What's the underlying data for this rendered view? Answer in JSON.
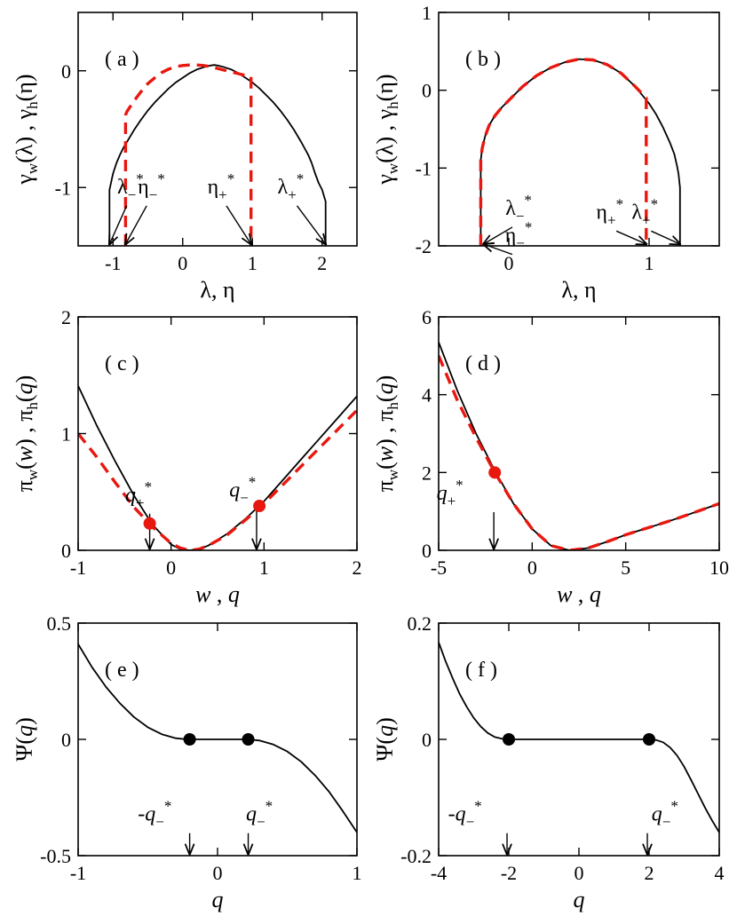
{
  "figure": {
    "title": ""
  },
  "chart_data": [
    {
      "id": "a",
      "type": "line",
      "panel_label": "( a )",
      "xlim": [
        -1.5,
        2.5
      ],
      "ylim": [
        -1.5,
        0.5
      ],
      "xticks": [
        -1,
        0,
        1,
        2
      ],
      "xtick_labels": [
        "-1",
        "0",
        "1",
        "2"
      ],
      "yticks": [
        -1,
        0
      ],
      "ytick_labels": [
        "-1",
        "0"
      ],
      "xlabel": "λ, η",
      "ylabel": "γw(λ) , γh(η)",
      "series": [
        {
          "name": "gamma_w",
          "style": "black-solid",
          "x": [
            -1.05,
            -1.05,
            -1.0,
            -0.95,
            -0.9,
            -0.85,
            -0.8,
            -0.7,
            -0.6,
            -0.5,
            -0.4,
            -0.3,
            -0.2,
            -0.1,
            0.0,
            0.1,
            0.2,
            0.3,
            0.4,
            0.45,
            0.5,
            0.6,
            0.7,
            0.8,
            0.9,
            1.0,
            1.1,
            1.2,
            1.3,
            1.4,
            1.5,
            1.6,
            1.7,
            1.8,
            1.85,
            1.9,
            1.95,
            2.0,
            2.05,
            2.05
          ],
          "y": [
            -1.5,
            -1.02,
            -0.88,
            -0.79,
            -0.72,
            -0.66,
            -0.61,
            -0.51,
            -0.42,
            -0.34,
            -0.27,
            -0.21,
            -0.15,
            -0.1,
            -0.06,
            -0.02,
            0.01,
            0.03,
            0.045,
            0.05,
            0.045,
            0.03,
            0.01,
            -0.02,
            -0.06,
            -0.1,
            -0.15,
            -0.21,
            -0.27,
            -0.34,
            -0.42,
            -0.51,
            -0.61,
            -0.72,
            -0.79,
            -0.88,
            -0.96,
            -1.02,
            -1.12,
            -1.5
          ]
        },
        {
          "name": "gamma_h",
          "style": "red-dashed",
          "x": [
            -0.82,
            -0.82,
            -0.8,
            -0.7,
            -0.6,
            -0.5,
            -0.4,
            -0.3,
            -0.2,
            -0.1,
            0.0,
            0.1,
            0.2,
            0.3,
            0.4,
            0.5,
            0.6,
            0.7,
            0.8,
            0.9,
            0.98,
            0.98
          ],
          "y": [
            -1.5,
            -0.38,
            -0.35,
            -0.26,
            -0.18,
            -0.11,
            -0.06,
            -0.015,
            0.015,
            0.035,
            0.045,
            0.05,
            0.05,
            0.045,
            0.035,
            0.02,
            0.005,
            -0.01,
            -0.025,
            -0.04,
            -0.05,
            -1.5
          ]
        }
      ],
      "annotations": [
        {
          "text": "λ",
          "sub": "−",
          "sup": "*",
          "tx": -0.75,
          "ty": -1.05,
          "ax": -1.05,
          "ay": -1.5
        },
        {
          "text": "η",
          "sub": "−",
          "sup": "*",
          "tx": -0.45,
          "ty": -1.05,
          "ax": -0.82,
          "ay": -1.5
        },
        {
          "text": "η",
          "sub": "+",
          "sup": "*",
          "tx": 0.55,
          "ty": -1.05,
          "ax": 0.98,
          "ay": -1.5
        },
        {
          "text": "λ",
          "sub": "+",
          "sup": "*",
          "tx": 1.55,
          "ty": -1.05,
          "ax": 2.05,
          "ay": -1.5
        }
      ],
      "markers": []
    },
    {
      "id": "b",
      "type": "line",
      "panel_label": "( b )",
      "xlim": [
        -0.5,
        1.5
      ],
      "ylim": [
        -2,
        1
      ],
      "xticks": [
        0,
        1
      ],
      "xtick_labels": [
        "0",
        "1"
      ],
      "yticks": [
        -2,
        -1,
        0,
        1
      ],
      "ytick_labels": [
        "-2",
        "-1",
        "0",
        "1"
      ],
      "xlabel": "λ, η",
      "ylabel": "γw(λ) , γh(η)",
      "series": [
        {
          "name": "gamma_w",
          "style": "black-solid",
          "x": [
            -0.2,
            -0.2,
            -0.19,
            -0.17,
            -0.14,
            -0.1,
            -0.05,
            0.0,
            0.1,
            0.2,
            0.3,
            0.4,
            0.5,
            0.6,
            0.7,
            0.8,
            0.9,
            1.0,
            1.05,
            1.1,
            1.15,
            1.18,
            1.2,
            1.21,
            1.22,
            1.22
          ],
          "y": [
            -2,
            -0.9,
            -0.75,
            -0.6,
            -0.45,
            -0.33,
            -0.22,
            -0.13,
            0.05,
            0.19,
            0.29,
            0.36,
            0.4,
            0.39,
            0.33,
            0.22,
            0.05,
            -0.17,
            -0.31,
            -0.48,
            -0.68,
            -0.82,
            -0.98,
            -1.08,
            -1.25,
            -2
          ]
        },
        {
          "name": "gamma_h",
          "style": "red-dashed",
          "x": [
            -0.2,
            -0.2,
            -0.19,
            -0.17,
            -0.14,
            -0.1,
            -0.05,
            0.0,
            0.1,
            0.2,
            0.3,
            0.4,
            0.5,
            0.6,
            0.7,
            0.8,
            0.9,
            0.98,
            0.98
          ],
          "y": [
            -2,
            -0.9,
            -0.75,
            -0.6,
            -0.45,
            -0.33,
            -0.22,
            -0.13,
            0.05,
            0.19,
            0.29,
            0.36,
            0.4,
            0.39,
            0.33,
            0.22,
            0.05,
            -0.1,
            -2
          ]
        }
      ],
      "annotations": [
        {
          "text": "λ",
          "sub": "−",
          "sup": "*",
          "tx": 0.07,
          "ty": -1.6,
          "ax": -0.18,
          "ay": -2
        },
        {
          "text": "η",
          "sub": "−",
          "sup": "*",
          "tx": 0.07,
          "ty": -1.95,
          "ax": -0.18,
          "ay": -2
        },
        {
          "text": "η",
          "sub": "+",
          "sup": "*",
          "tx": 0.72,
          "ty": -1.65,
          "ax": 0.98,
          "ay": -2
        },
        {
          "text": "λ",
          "sub": "+",
          "sup": "*",
          "tx": 0.97,
          "ty": -1.65,
          "ax": 1.22,
          "ay": -2
        }
      ],
      "markers": []
    },
    {
      "id": "c",
      "type": "line",
      "panel_label": "( c )",
      "xlim": [
        -1,
        2
      ],
      "ylim": [
        0,
        2
      ],
      "xticks": [
        -1,
        0,
        1,
        2
      ],
      "xtick_labels": [
        "-1",
        "0",
        "1",
        "2"
      ],
      "yticks": [
        0,
        1,
        2
      ],
      "ytick_labels": [
        "0",
        "1",
        "2"
      ],
      "xlabel": "w , q",
      "ylabel": "πw(w) , πh(q)",
      "series": [
        {
          "name": "pi_w",
          "style": "black-solid",
          "x": [
            -1.0,
            -0.8,
            -0.6,
            -0.4,
            -0.2,
            0.0,
            0.1,
            0.2,
            0.3,
            0.4,
            0.6,
            0.8,
            1.0,
            1.2,
            1.4,
            1.6,
            1.8,
            2.0
          ],
          "y": [
            1.41,
            1.07,
            0.76,
            0.47,
            0.22,
            0.05,
            0.01,
            0.0,
            0.01,
            0.04,
            0.14,
            0.27,
            0.42,
            0.6,
            0.78,
            0.96,
            1.14,
            1.32
          ]
        },
        {
          "name": "pi_h",
          "style": "red-dashed",
          "x": [
            -1.0,
            -0.8,
            -0.6,
            -0.4,
            -0.2,
            0.0,
            0.1,
            0.2,
            0.3,
            0.4,
            0.6,
            0.8,
            1.0,
            1.2,
            1.4,
            1.6,
            1.8,
            2.0
          ],
          "y": [
            1.0,
            0.8,
            0.58,
            0.37,
            0.2,
            0.06,
            0.02,
            0.0,
            0.01,
            0.04,
            0.13,
            0.26,
            0.4,
            0.56,
            0.72,
            0.88,
            1.04,
            1.2
          ]
        }
      ],
      "annotations": [
        {
          "text": "q",
          "sub": "+",
          "sup": "*",
          "tx": -0.35,
          "ty": 0.42,
          "ax": -0.23,
          "ay": 0.0,
          "vertical": true
        },
        {
          "text": "q",
          "sub": "−",
          "sup": "*",
          "tx": 0.77,
          "ty": 0.46,
          "ax": 0.92,
          "ay": 0.0,
          "vertical": true
        }
      ],
      "markers": [
        {
          "x": -0.23,
          "y": 0.23,
          "color": "#e8170f"
        },
        {
          "x": 0.95,
          "y": 0.38,
          "color": "#e8170f"
        }
      ]
    },
    {
      "id": "d",
      "type": "line",
      "panel_label": "( d )",
      "xlim": [
        -5,
        10
      ],
      "ylim": [
        0,
        6
      ],
      "xticks": [
        -5,
        0,
        5,
        10
      ],
      "xtick_labels": [
        "-5",
        "0",
        "5",
        "10"
      ],
      "yticks": [
        0,
        2,
        4,
        6
      ],
      "ytick_labels": [
        "0",
        "2",
        "4",
        "6"
      ],
      "xlabel": "w , q",
      "ylabel": "πw(w) , πh(q)",
      "series": [
        {
          "name": "pi_w",
          "style": "black-solid",
          "x": [
            -5,
            -4,
            -3,
            -2,
            -1,
            0,
            1,
            2,
            3,
            4,
            5,
            6,
            7,
            8,
            9,
            10
          ],
          "y": [
            5.35,
            4.1,
            3.0,
            2.05,
            1.2,
            0.55,
            0.12,
            0.0,
            0.06,
            0.22,
            0.4,
            0.55,
            0.7,
            0.86,
            1.03,
            1.2
          ]
        },
        {
          "name": "pi_h",
          "style": "red-dashed",
          "x": [
            -5,
            -4,
            -3,
            -2,
            -1,
            0,
            1,
            2,
            3,
            4,
            5,
            6,
            7,
            8,
            9,
            10
          ],
          "y": [
            5.0,
            3.85,
            2.9,
            2.0,
            1.2,
            0.55,
            0.12,
            0.0,
            0.06,
            0.22,
            0.4,
            0.55,
            0.7,
            0.86,
            1.03,
            1.2
          ]
        }
      ],
      "annotations": [
        {
          "text": "q",
          "sub": "+",
          "sup": "*",
          "tx": -4.4,
          "ty": 1.3,
          "ax": -2.05,
          "ay": 0.0,
          "vertical": true
        }
      ],
      "markers": [
        {
          "x": -2.0,
          "y": 2.0,
          "color": "#e8170f"
        }
      ]
    },
    {
      "id": "e",
      "type": "line",
      "panel_label": "( e )",
      "xlim": [
        -1,
        1
      ],
      "ylim": [
        -0.5,
        0.5
      ],
      "xticks": [
        -1,
        0,
        1
      ],
      "xtick_labels": [
        "-1",
        "0",
        "1"
      ],
      "yticks": [
        -0.5,
        0,
        0.5
      ],
      "ytick_labels": [
        "-0.5",
        "0",
        "0.5"
      ],
      "xlabel": "q",
      "ylabel": "Ψ(q)",
      "series": [
        {
          "name": "psi",
          "style": "black-solid",
          "x": [
            -1.0,
            -0.9,
            -0.8,
            -0.7,
            -0.6,
            -0.5,
            -0.4,
            -0.3,
            -0.22,
            0.0,
            0.22,
            0.3,
            0.4,
            0.5,
            0.6,
            0.7,
            0.8,
            0.9,
            1.0
          ],
          "y": [
            0.41,
            0.31,
            0.225,
            0.155,
            0.096,
            0.052,
            0.022,
            0.005,
            0.0,
            0.0,
            0.0,
            -0.005,
            -0.022,
            -0.052,
            -0.096,
            -0.155,
            -0.225,
            -0.31,
            -0.4
          ]
        }
      ],
      "annotations": [
        {
          "text": "-q",
          "sub": "−",
          "sup": "*",
          "tx": -0.45,
          "ty": -0.35,
          "ax": -0.2,
          "ay": -0.5,
          "vertical": true
        },
        {
          "text": "q",
          "sub": "−",
          "sup": "*",
          "tx": 0.3,
          "ty": -0.35,
          "ax": 0.22,
          "ay": -0.5,
          "vertical": true
        }
      ],
      "markers": [
        {
          "x": -0.2,
          "y": 0.0,
          "color": "#000000"
        },
        {
          "x": 0.22,
          "y": 0.0,
          "color": "#000000"
        }
      ]
    },
    {
      "id": "f",
      "type": "line",
      "panel_label": "( f )",
      "xlim": [
        -4,
        4
      ],
      "ylim": [
        -0.2,
        0.2
      ],
      "xticks": [
        -4,
        -2,
        0,
        2,
        4
      ],
      "xtick_labels": [
        "-4",
        "-2",
        "0",
        "2",
        "4"
      ],
      "yticks": [
        -0.2,
        0,
        0.2
      ],
      "ytick_labels": [
        "-0.2",
        "0",
        "0.2"
      ],
      "xlabel": "q",
      "ylabel": "Ψ(q)",
      "series": [
        {
          "name": "psi",
          "style": "black-solid",
          "x": [
            -4.0,
            -3.8,
            -3.6,
            -3.4,
            -3.2,
            -3.0,
            -2.8,
            -2.6,
            -2.4,
            -2.2,
            -2.0,
            2.0,
            2.2,
            2.4,
            2.6,
            2.8,
            3.0,
            3.2,
            3.4,
            3.6,
            3.8,
            4.0
          ],
          "y": [
            0.167,
            0.134,
            0.105,
            0.078,
            0.056,
            0.037,
            0.022,
            0.011,
            0.004,
            0.001,
            0.0,
            0.0,
            -0.001,
            -0.005,
            -0.014,
            -0.028,
            -0.047,
            -0.07,
            -0.094,
            -0.118,
            -0.14,
            -0.16
          ]
        }
      ],
      "annotations": [
        {
          "text": "-q",
          "sub": "−",
          "sup": "*",
          "tx": -3.25,
          "ty": -0.14,
          "ax": -2.05,
          "ay": -0.2,
          "vertical": true
        },
        {
          "text": "q",
          "sub": "−",
          "sup": "*",
          "tx": 2.45,
          "ty": -0.14,
          "ax": 1.95,
          "ay": -0.2,
          "vertical": true
        }
      ],
      "markers": [
        {
          "x": -2.0,
          "y": 0.0,
          "color": "#000000"
        },
        {
          "x": 2.0,
          "y": 0.0,
          "color": "#000000"
        }
      ]
    }
  ],
  "colors": {
    "line": "#000000",
    "dashed": "#e8170f",
    "marker_red": "#e8170f",
    "marker_black": "#000000"
  }
}
